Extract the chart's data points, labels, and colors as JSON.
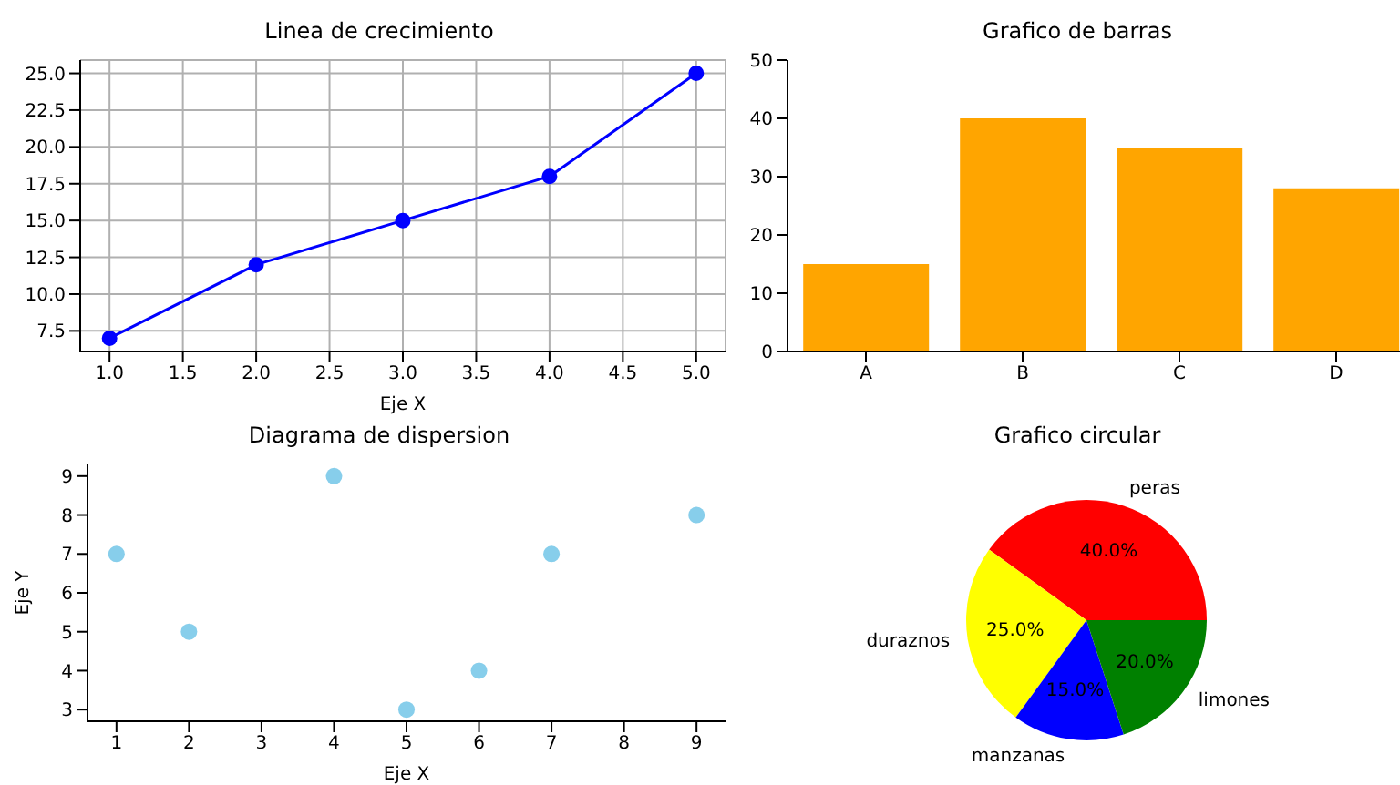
{
  "chart_data": [
    {
      "type": "line",
      "title": "Linea de crecimiento",
      "xlabel": "Eje X",
      "x": [
        1,
        2,
        3,
        4,
        5
      ],
      "series": [
        {
          "color": "#0000ff",
          "values": [
            7,
            12,
            15,
            18,
            25
          ]
        }
      ],
      "xlim": [
        0.8,
        5.2
      ],
      "xticks": [
        {
          "value": 1,
          "label": "1.0"
        },
        {
          "value": 1.5,
          "label": "1.5"
        },
        {
          "value": 2,
          "label": "2.0"
        },
        {
          "value": 2.5,
          "label": "2.5"
        },
        {
          "value": 3,
          "label": "3.0"
        },
        {
          "value": 3.5,
          "label": "3.5"
        },
        {
          "value": 4,
          "label": "4.0"
        },
        {
          "value": 4.5,
          "label": "4.5"
        },
        {
          "value": 5,
          "label": "5.0"
        }
      ],
      "ylim": [
        6.1,
        25.9
      ],
      "yticks": [
        {
          "value": 7.5,
          "label": "7.5"
        },
        {
          "value": 10,
          "label": "10.0"
        },
        {
          "value": 12.5,
          "label": "12.5"
        },
        {
          "value": 15,
          "label": "15.0"
        },
        {
          "value": 17.5,
          "label": "17.5"
        },
        {
          "value": 20,
          "label": "20.0"
        },
        {
          "value": 22.5,
          "label": "22.5"
        },
        {
          "value": 25,
          "label": "25.0"
        }
      ],
      "grid": true,
      "marker": "circle",
      "line_style": "solid"
    },
    {
      "type": "bar",
      "title": "Grafico de barras",
      "categories": [
        "A",
        "B",
        "C",
        "D"
      ],
      "values": [
        15,
        40,
        35,
        28
      ],
      "color": "#ffa500",
      "ylim": [
        0,
        50
      ],
      "yticks": [
        0,
        10,
        20,
        30,
        40,
        50
      ]
    },
    {
      "type": "scatter",
      "title": "Diagrama de dispersion",
      "xlabel": "Eje X",
      "ylabel": "Eje Y",
      "x": [
        1,
        2,
        4,
        5,
        6,
        7,
        9
      ],
      "values": [
        7,
        5,
        9,
        3,
        4,
        7,
        8
      ],
      "color": "#87ceeb",
      "xlim": [
        0.6,
        9.4
      ],
      "xticks": [
        1,
        2,
        3,
        4,
        5,
        6,
        7,
        8,
        9
      ],
      "ylim": [
        2.7,
        9.3
      ],
      "yticks": [
        3,
        4,
        5,
        6,
        7,
        8,
        9
      ],
      "marker": "circle"
    },
    {
      "type": "pie",
      "title": "Grafico circular",
      "categories": [
        "peras",
        "duraznos",
        "manzanas",
        "limones"
      ],
      "values": [
        40,
        25,
        15,
        20
      ],
      "colors": [
        "#ff0000",
        "#ffff00",
        "#0000ff",
        "#008000"
      ],
      "value_labels": [
        "40.0%",
        "25.0%",
        "15.0%",
        "20.0%"
      ]
    }
  ]
}
